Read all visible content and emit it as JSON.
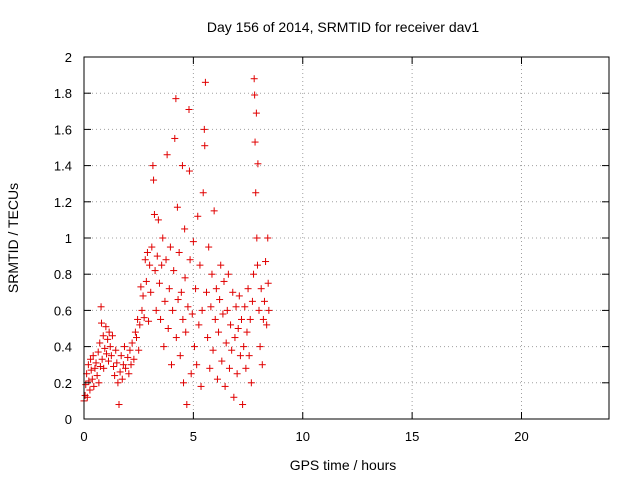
{
  "chart_data": {
    "type": "scatter",
    "title": "Day 156 of 2014, SRMTID for receiver dav1",
    "xlabel": "GPS time / hours",
    "ylabel": "SRMTID / TECUs",
    "xlim": [
      0,
      24
    ],
    "ylim": [
      0,
      2
    ],
    "xticks": [
      0,
      5,
      10,
      15,
      20
    ],
    "yticks": [
      0,
      0.2,
      0.4,
      0.6,
      0.8,
      1,
      1.2,
      1.4,
      1.6,
      1.8,
      2
    ],
    "xtick_labels": [
      "0",
      "5",
      "10",
      "15",
      "20"
    ],
    "ytick_labels": [
      "0",
      "0.2",
      "0.4",
      "0.6",
      "0.8",
      "1",
      "1.2",
      "1.4",
      "1.6",
      "1.8",
      "2"
    ],
    "grid": true,
    "marker": "+",
    "color": "#e00000",
    "series": [
      {
        "name": "dav1",
        "points": [
          [
            0.0,
            0.1
          ],
          [
            0.05,
            0.13
          ],
          [
            0.08,
            0.19
          ],
          [
            0.12,
            0.25
          ],
          [
            0.15,
            0.12
          ],
          [
            0.2,
            0.3
          ],
          [
            0.22,
            0.21
          ],
          [
            0.27,
            0.16
          ],
          [
            0.3,
            0.33
          ],
          [
            0.33,
            0.27
          ],
          [
            0.38,
            0.22
          ],
          [
            0.42,
            0.35
          ],
          [
            0.45,
            0.18
          ],
          [
            0.5,
            0.28
          ],
          [
            0.55,
            0.31
          ],
          [
            0.6,
            0.24
          ],
          [
            0.65,
            0.37
          ],
          [
            0.68,
            0.2
          ],
          [
            0.72,
            0.42
          ],
          [
            0.75,
            0.29
          ],
          [
            0.78,
            0.62
          ],
          [
            0.8,
            0.53
          ],
          [
            0.83,
            0.33
          ],
          [
            0.88,
            0.46
          ],
          [
            0.9,
            0.28
          ],
          [
            0.95,
            0.39
          ],
          [
            1.0,
            0.51
          ],
          [
            1.03,
            0.36
          ],
          [
            1.08,
            0.44
          ],
          [
            1.12,
            0.32
          ],
          [
            1.15,
            0.48
          ],
          [
            1.2,
            0.4
          ],
          [
            1.25,
            0.35
          ],
          [
            1.3,
            0.46
          ],
          [
            1.35,
            0.29
          ],
          [
            1.4,
            0.24
          ],
          [
            1.45,
            0.38
          ],
          [
            1.5,
            0.31
          ],
          [
            1.55,
            0.2
          ],
          [
            1.6,
            0.08
          ],
          [
            1.65,
            0.26
          ],
          [
            1.7,
            0.35
          ],
          [
            1.75,
            0.22
          ],
          [
            1.8,
            0.3
          ],
          [
            1.85,
            0.4
          ],
          [
            1.9,
            0.28
          ],
          [
            2.0,
            0.34
          ],
          [
            2.05,
            0.25
          ],
          [
            2.1,
            0.38
          ],
          [
            2.15,
            0.3
          ],
          [
            2.2,
            0.42
          ],
          [
            2.28,
            0.33
          ],
          [
            2.35,
            0.48
          ],
          [
            2.4,
            0.45
          ],
          [
            2.45,
            0.55
          ],
          [
            2.5,
            0.38
          ],
          [
            2.55,
            0.52
          ],
          [
            2.6,
            0.73
          ],
          [
            2.65,
            0.6
          ],
          [
            2.7,
            0.68
          ],
          [
            2.75,
            0.56
          ],
          [
            2.8,
            0.88
          ],
          [
            2.85,
            0.76
          ],
          [
            2.9,
            0.92
          ],
          [
            2.95,
            0.54
          ],
          [
            3.0,
            0.85
          ],
          [
            3.05,
            0.7
          ],
          [
            3.1,
            0.95
          ],
          [
            3.15,
            1.4
          ],
          [
            3.18,
            1.32
          ],
          [
            3.22,
            1.13
          ],
          [
            3.25,
            0.82
          ],
          [
            3.3,
            0.6
          ],
          [
            3.35,
            0.9
          ],
          [
            3.4,
            1.1
          ],
          [
            3.45,
            0.75
          ],
          [
            3.5,
            0.55
          ],
          [
            3.55,
            0.85
          ],
          [
            3.6,
            1.0
          ],
          [
            3.65,
            0.4
          ],
          [
            3.7,
            0.65
          ],
          [
            3.75,
            0.88
          ],
          [
            3.8,
            1.46
          ],
          [
            3.85,
            0.5
          ],
          [
            3.9,
            0.72
          ],
          [
            3.95,
            0.95
          ],
          [
            4.0,
            0.3
          ],
          [
            4.05,
            0.6
          ],
          [
            4.1,
            0.82
          ],
          [
            4.15,
            1.55
          ],
          [
            4.2,
            1.77
          ],
          [
            4.22,
            0.45
          ],
          [
            4.27,
            1.17
          ],
          [
            4.3,
            0.66
          ],
          [
            4.35,
            0.92
          ],
          [
            4.4,
            0.35
          ],
          [
            4.45,
            0.7
          ],
          [
            4.5,
            1.4
          ],
          [
            4.52,
            0.55
          ],
          [
            4.55,
            0.2
          ],
          [
            4.6,
            1.05
          ],
          [
            4.62,
            0.78
          ],
          [
            4.65,
            0.48
          ],
          [
            4.7,
            0.08
          ],
          [
            4.75,
            0.62
          ],
          [
            4.8,
            1.71
          ],
          [
            4.82,
            1.37
          ],
          [
            4.85,
            0.88
          ],
          [
            4.9,
            0.25
          ],
          [
            4.95,
            0.58
          ],
          [
            5.0,
            0.98
          ],
          [
            5.05,
            0.4
          ],
          [
            5.1,
            0.72
          ],
          [
            5.15,
            0.3
          ],
          [
            5.2,
            1.12
          ],
          [
            5.25,
            0.52
          ],
          [
            5.3,
            0.85
          ],
          [
            5.35,
            0.18
          ],
          [
            5.4,
            0.6
          ],
          [
            5.45,
            1.25
          ],
          [
            5.5,
            1.6
          ],
          [
            5.52,
            1.51
          ],
          [
            5.55,
            1.86
          ],
          [
            5.6,
            0.7
          ],
          [
            5.65,
            0.45
          ],
          [
            5.7,
            0.95
          ],
          [
            5.75,
            0.28
          ],
          [
            5.8,
            0.62
          ],
          [
            5.85,
            0.8
          ],
          [
            5.9,
            0.38
          ],
          [
            5.95,
            1.15
          ],
          [
            6.0,
            0.55
          ],
          [
            6.05,
            0.72
          ],
          [
            6.1,
            0.22
          ],
          [
            6.15,
            0.48
          ],
          [
            6.2,
            0.66
          ],
          [
            6.25,
            0.85
          ],
          [
            6.3,
            0.32
          ],
          [
            6.35,
            0.58
          ],
          [
            6.4,
            0.76
          ],
          [
            6.45,
            0.18
          ],
          [
            6.5,
            0.42
          ],
          [
            6.55,
            0.6
          ],
          [
            6.6,
            0.8
          ],
          [
            6.65,
            0.28
          ],
          [
            6.7,
            0.52
          ],
          [
            6.75,
            0.38
          ],
          [
            6.8,
            0.7
          ],
          [
            6.85,
            0.12
          ],
          [
            6.9,
            0.45
          ],
          [
            6.95,
            0.62
          ],
          [
            7.0,
            0.25
          ],
          [
            7.05,
            0.5
          ],
          [
            7.1,
            0.68
          ],
          [
            7.15,
            0.35
          ],
          [
            7.2,
            0.55
          ],
          [
            7.25,
            0.08
          ],
          [
            7.3,
            0.4
          ],
          [
            7.35,
            0.62
          ],
          [
            7.4,
            0.28
          ],
          [
            7.45,
            0.48
          ],
          [
            7.5,
            0.72
          ],
          [
            7.55,
            0.35
          ],
          [
            7.6,
            0.55
          ],
          [
            7.65,
            0.2
          ],
          [
            7.7,
            0.65
          ],
          [
            7.75,
            0.8
          ],
          [
            7.78,
            1.88
          ],
          [
            7.8,
            1.79
          ],
          [
            7.82,
            1.53
          ],
          [
            7.85,
            1.25
          ],
          [
            7.88,
            1.69
          ],
          [
            7.9,
            1.0
          ],
          [
            7.93,
            0.85
          ],
          [
            7.95,
            1.41
          ],
          [
            8.0,
            0.6
          ],
          [
            8.05,
            0.4
          ],
          [
            8.1,
            0.72
          ],
          [
            8.15,
            0.3
          ],
          [
            8.2,
            0.55
          ],
          [
            8.25,
            0.65
          ],
          [
            8.3,
            0.87
          ],
          [
            8.35,
            0.52
          ],
          [
            8.4,
            1.0
          ],
          [
            8.42,
            0.75
          ],
          [
            8.45,
            0.6
          ]
        ]
      }
    ]
  }
}
